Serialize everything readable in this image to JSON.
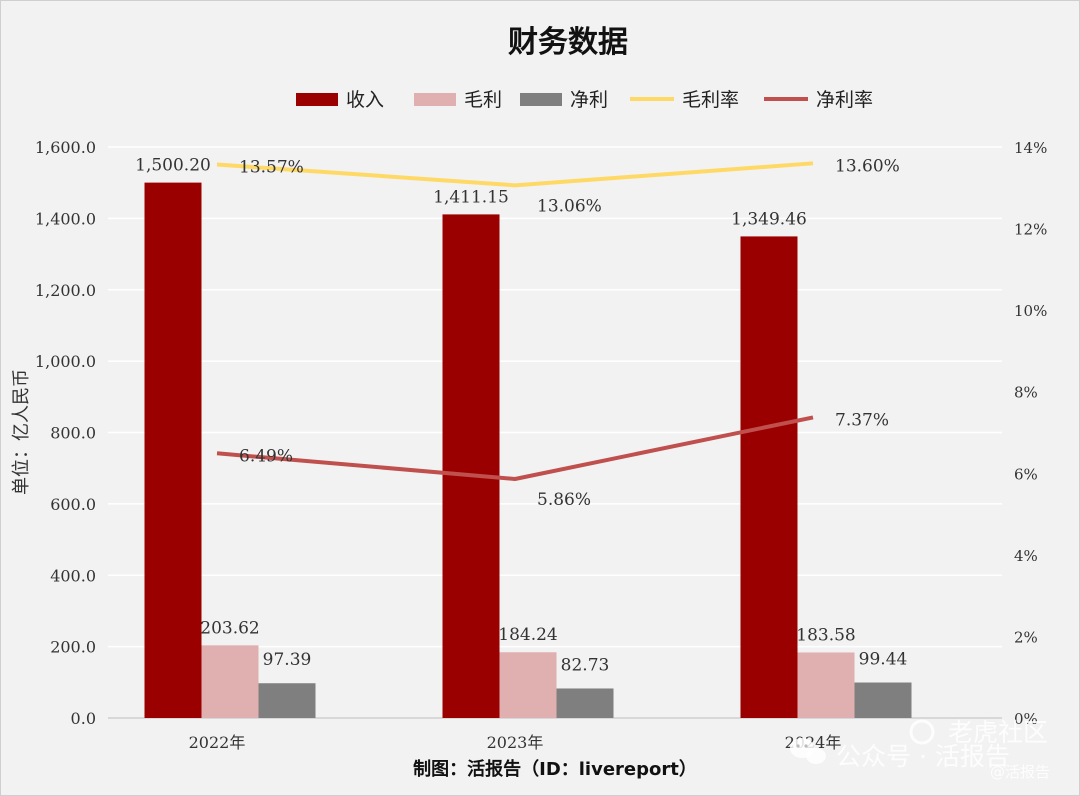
{
  "chart_data": {
    "type": "bar",
    "title": "财务数据",
    "categories": [
      "2022年",
      "2023年",
      "2024年"
    ],
    "series": [
      {
        "name": "收入",
        "kind": "bar",
        "axis": "left",
        "values": [
          1500.2,
          1411.15,
          1349.46
        ],
        "labels": [
          "1,500.20",
          "1,411.15",
          "1,349.46"
        ],
        "color": "#9b0000"
      },
      {
        "name": "毛利",
        "kind": "bar",
        "axis": "left",
        "values": [
          203.62,
          184.24,
          183.58
        ],
        "labels": [
          "203.62",
          "184.24",
          "183.58"
        ],
        "color": "#e0b0b0"
      },
      {
        "name": "净利",
        "kind": "bar",
        "axis": "left",
        "values": [
          97.39,
          82.73,
          99.44
        ],
        "labels": [
          "97.39",
          "82.73",
          "99.44"
        ],
        "color": "#7f7f7f"
      },
      {
        "name": "毛利率",
        "kind": "line",
        "axis": "right",
        "values": [
          13.57,
          13.06,
          13.6
        ],
        "labels": [
          "13.57%",
          "13.06%",
          "13.60%"
        ],
        "color": "#ffd966"
      },
      {
        "name": "净利率",
        "kind": "line",
        "axis": "right",
        "values": [
          6.49,
          5.86,
          7.37
        ],
        "labels": [
          "6.49%",
          "5.86%",
          "7.37%"
        ],
        "color": "#c0504d"
      }
    ],
    "ylabel": "单位：亿人民币",
    "ylim": [
      0,
      1600
    ],
    "y_ticks": [
      "0.0",
      "200.0",
      "400.0",
      "600.0",
      "800.0",
      "1,000.0",
      "1,200.0",
      "1,400.0",
      "1,600.0"
    ],
    "y2lim": [
      0,
      14
    ],
    "y2_ticks": [
      "0%",
      "2%",
      "4%",
      "6%",
      "8%",
      "10%",
      "12%",
      "14%"
    ],
    "grid": true,
    "legend_position": "top"
  },
  "footer": "制图：活报告（ID：livereport）",
  "watermark": {
    "main": "公众号 · 活报告",
    "brand": "老虎社区",
    "handle": "@活报告"
  }
}
